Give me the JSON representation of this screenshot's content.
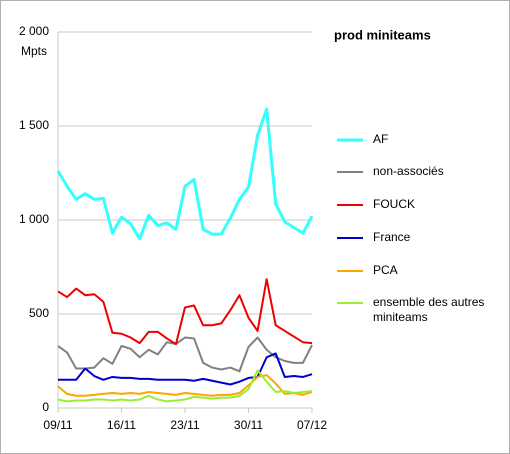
{
  "chart_data": {
    "type": "line",
    "title": "prod miniteams",
    "y_label": "Mpts",
    "categories": [
      "09/11",
      null,
      null,
      null,
      null,
      null,
      null,
      "16/11",
      null,
      null,
      null,
      null,
      null,
      null,
      "23/11",
      null,
      null,
      null,
      null,
      null,
      null,
      "30/11",
      null,
      null,
      null,
      null,
      null,
      null,
      "07/12"
    ],
    "ylim": [
      0,
      2000
    ],
    "yticks": [
      0,
      500,
      {
        "value": 1000,
        "label": "1 000"
      },
      {
        "value": 1500,
        "label": "1 500"
      },
      {
        "value": 2000,
        "label": "2 000"
      }
    ],
    "grid": true,
    "legend": "right",
    "series": [
      {
        "name": "AF",
        "color": "#33ffff",
        "values": [
          1260,
          1180,
          1110,
          1140,
          1110,
          1115,
          930,
          1015,
          980,
          900,
          1025,
          970,
          985,
          950,
          1180,
          1215,
          950,
          925,
          925,
          1010,
          1110,
          1175,
          1450,
          1590,
          1085,
          990,
          960,
          930,
          1020
        ]
      },
      {
        "name": "non-associés",
        "color": "#808080",
        "values": [
          330,
          295,
          210,
          210,
          215,
          265,
          235,
          330,
          315,
          270,
          310,
          285,
          350,
          340,
          375,
          370,
          240,
          215,
          205,
          215,
          195,
          325,
          375,
          310,
          270,
          250,
          240,
          240,
          335
        ]
      },
      {
        "name": "FOUCK",
        "color": "#ee0000",
        "values": [
          620,
          590,
          635,
          600,
          605,
          565,
          400,
          395,
          375,
          345,
          405,
          405,
          370,
          340,
          535,
          545,
          440,
          440,
          450,
          520,
          600,
          480,
          410,
          685,
          440,
          410,
          380,
          350,
          345
        ]
      },
      {
        "name": "France",
        "color": "#0000cc",
        "values": [
          150,
          150,
          150,
          210,
          170,
          150,
          165,
          160,
          160,
          155,
          155,
          150,
          150,
          150,
          150,
          145,
          155,
          145,
          135,
          125,
          140,
          160,
          165,
          270,
          290,
          165,
          170,
          165,
          180
        ]
      },
      {
        "name": "PCA",
        "color": "#ffa500",
        "values": [
          115,
          75,
          65,
          65,
          70,
          75,
          80,
          75,
          80,
          75,
          85,
          80,
          75,
          70,
          80,
          75,
          70,
          65,
          70,
          70,
          80,
          120,
          165,
          175,
          130,
          75,
          80,
          70,
          85
        ]
      },
      {
        "name": "ensemble des autres miniteams",
        "color": "#99ee33",
        "values": [
          45,
          35,
          40,
          40,
          45,
          45,
          40,
          45,
          40,
          45,
          65,
          45,
          35,
          40,
          45,
          60,
          55,
          50,
          55,
          55,
          65,
          100,
          200,
          140,
          85,
          90,
          80,
          85,
          90
        ]
      }
    ]
  }
}
